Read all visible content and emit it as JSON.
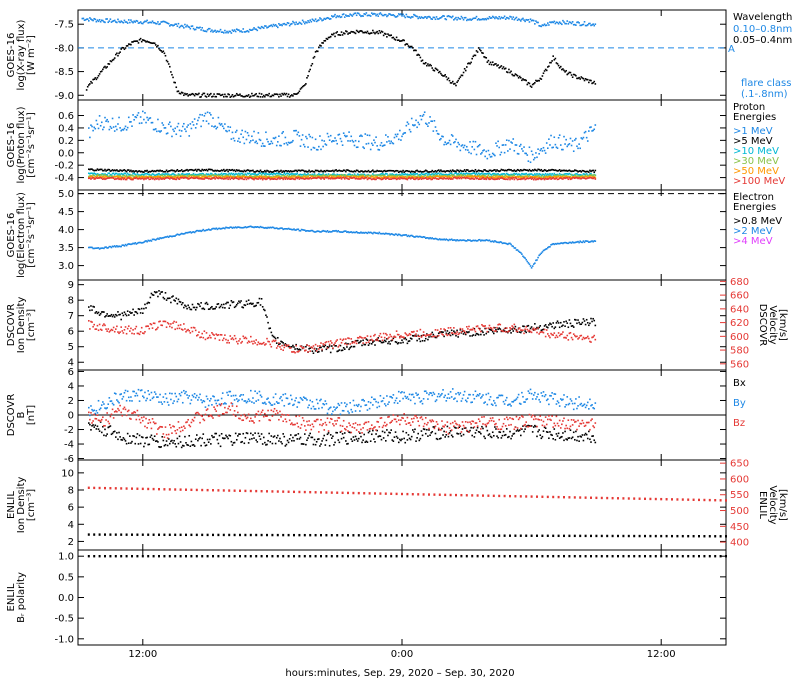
{
  "x_axis": {
    "label": "hours:minutes, Sep. 29, 2020 – Sep. 30, 2020",
    "ticks": [
      {
        "t": 12,
        "label": "12:00"
      },
      {
        "t": 24,
        "label": "0:00"
      },
      {
        "t": 36,
        "label": "12:00"
      }
    ],
    "range_hours": [
      9.0,
      39.0
    ]
  },
  "chart_data": [
    {
      "type": "scatter",
      "id": "xray",
      "ylabel": [
        "GOES-16",
        "log(X-ray flux)",
        "[W m⁻²]"
      ],
      "ylim": [
        -9.1,
        -7.2
      ],
      "yticks": [
        -7.5,
        -8.0,
        -8.5,
        -9.0
      ],
      "ytick_labels": [
        "-7.5",
        "-8.0",
        "-8.5",
        "-9.0"
      ],
      "legend_title": "Wavelength",
      "legend_title_2": "flare class",
      "legend_title_3": "(.1-.8nm)",
      "class_marker": "A",
      "class_level": -8.0,
      "series": [
        {
          "name": "0.10–0.8nm",
          "color": "#1e88e5",
          "x": [
            9.2,
            10,
            11,
            12,
            13,
            14,
            15,
            16,
            17,
            18,
            19,
            20,
            21,
            22,
            23,
            24,
            25,
            26,
            27,
            28,
            29,
            30,
            30.5,
            31.0,
            32.0,
            33.0
          ],
          "y": [
            -7.38,
            -7.42,
            -7.44,
            -7.45,
            -7.48,
            -7.55,
            -7.62,
            -7.65,
            -7.62,
            -7.55,
            -7.48,
            -7.42,
            -7.32,
            -7.3,
            -7.3,
            -7.32,
            -7.35,
            -7.36,
            -7.38,
            -7.37,
            -7.36,
            -7.42,
            -7.55,
            -7.45,
            -7.48,
            -7.5
          ]
        },
        {
          "name": "0.05–0.4nm",
          "color": "#000000",
          "x": [
            9.4,
            10,
            10.5,
            11,
            11.5,
            12,
            12.5,
            13,
            13.3,
            13.6,
            14,
            15,
            16,
            17,
            18,
            19,
            19.5,
            20,
            20.5,
            21,
            22,
            23,
            24,
            24.5,
            25,
            26,
            26.5,
            27,
            27.3,
            27.6,
            28,
            29,
            30,
            30.5,
            31,
            31.5,
            32,
            33
          ],
          "y": [
            -8.85,
            -8.55,
            -8.3,
            -8.05,
            -7.9,
            -7.83,
            -7.88,
            -8.1,
            -8.5,
            -8.9,
            -9.0,
            -9.0,
            -9.0,
            -9.0,
            -9.0,
            -9.0,
            -8.8,
            -8.1,
            -7.8,
            -7.7,
            -7.65,
            -7.68,
            -7.85,
            -8.0,
            -8.3,
            -8.6,
            -8.8,
            -8.4,
            -8.2,
            -8.0,
            -8.3,
            -8.5,
            -8.8,
            -8.6,
            -8.2,
            -8.5,
            -8.6,
            -8.75
          ]
        }
      ]
    },
    {
      "type": "scatter",
      "id": "proton",
      "ylabel": [
        "GOES-16",
        "log(Proton flux)",
        "[cm⁻²s⁻¹sr⁻¹]"
      ],
      "ylim": [
        -0.6,
        0.85
      ],
      "yticks": [
        0.6,
        0.4,
        0.2,
        0.0,
        -0.2,
        -0.4
      ],
      "ytick_labels": [
        "0.6",
        "0.4",
        "0.2",
        "0.0",
        "-0.2",
        "-0.4"
      ],
      "legend_title": "Proton",
      "legend_title_2": "Energies",
      "series": [
        {
          "name": ">1 MeV",
          "color": "#1e88e5",
          "x": [
            9.5,
            10,
            11,
            12,
            13,
            14,
            15,
            16,
            17,
            18,
            19,
            20,
            21,
            22,
            23,
            24,
            25,
            26,
            27,
            28,
            29,
            30,
            31,
            32,
            33
          ],
          "y": [
            0.3,
            0.5,
            0.45,
            0.55,
            0.4,
            0.35,
            0.6,
            0.3,
            0.25,
            0.2,
            0.25,
            0.15,
            0.25,
            0.2,
            0.15,
            0.3,
            0.6,
            0.2,
            0.1,
            0.0,
            0.15,
            -0.05,
            0.2,
            0.1,
            0.4
          ]
        },
        {
          "name": ">5 MeV",
          "color": "#000000",
          "x": [
            9.5,
            12,
            15,
            18,
            21,
            24,
            27,
            30,
            33
          ],
          "y": [
            -0.27,
            -0.3,
            -0.28,
            -0.3,
            -0.29,
            -0.3,
            -0.29,
            -0.28,
            -0.3
          ]
        },
        {
          "name": ">10 MeV",
          "color": "#00b8d4",
          "x": [
            9.5,
            12,
            15,
            18,
            21,
            24,
            27,
            30,
            33
          ],
          "y": [
            -0.34,
            -0.35,
            -0.35,
            -0.34,
            -0.36,
            -0.35,
            -0.34,
            -0.35,
            -0.35
          ]
        },
        {
          "name": ">30 MeV",
          "color": "#8bc34a",
          "x": [
            9.5,
            12,
            15,
            18,
            21,
            24,
            27,
            30,
            33
          ],
          "y": [
            -0.37,
            -0.38,
            -0.37,
            -0.38,
            -0.37,
            -0.38,
            -0.37,
            -0.38,
            -0.37
          ]
        },
        {
          "name": ">50 MeV",
          "color": "#ff9800",
          "x": [
            9.5,
            12,
            15,
            18,
            21,
            24,
            27,
            30,
            33
          ],
          "y": [
            -0.39,
            -0.4,
            -0.39,
            -0.4,
            -0.39,
            -0.4,
            -0.39,
            -0.4,
            -0.39
          ]
        },
        {
          "name": ">100 MeV",
          "color": "#e53935",
          "x": [
            9.5,
            12,
            15,
            18,
            21,
            24,
            27,
            30,
            33
          ],
          "y": [
            -0.41,
            -0.42,
            -0.41,
            -0.42,
            -0.41,
            -0.42,
            -0.41,
            -0.42,
            -0.41
          ]
        }
      ]
    },
    {
      "type": "line",
      "id": "electron",
      "ylabel": [
        "GOES-16",
        "log(Electron flux)",
        "[cm⁻²s⁻¹sr⁻¹]"
      ],
      "ylim": [
        2.6,
        5.1
      ],
      "yticks": [
        5.0,
        4.5,
        4.0,
        3.5,
        3.0
      ],
      "ytick_labels": [
        "5.0",
        "4.5",
        "4.0",
        "3.5",
        "3.0"
      ],
      "dashed_level": 5.0,
      "legend_title": "Electron",
      "legend_title_2": "Energies",
      "series": [
        {
          "name": ">0.8 MeV",
          "color": "#000000",
          "x": [],
          "y": []
        },
        {
          "name": ">2 MeV",
          "color": "#1e88e5",
          "x": [
            9.5,
            10,
            11,
            12,
            13,
            14,
            15,
            16,
            17,
            18,
            19,
            20,
            21,
            22,
            23,
            24,
            25,
            26,
            27,
            28,
            29,
            29.5,
            30,
            30.5,
            31,
            32,
            33
          ],
          "y": [
            3.5,
            3.48,
            3.55,
            3.65,
            3.78,
            3.9,
            4.0,
            4.05,
            4.08,
            4.05,
            4.0,
            3.95,
            3.95,
            3.92,
            3.9,
            3.85,
            3.78,
            3.72,
            3.7,
            3.7,
            3.6,
            3.35,
            2.95,
            3.4,
            3.6,
            3.65,
            3.68
          ]
        },
        {
          "name": ">4 MeV",
          "color": "#e040fb",
          "x": [],
          "y": []
        }
      ]
    },
    {
      "type": "scatter",
      "id": "dscovr_density",
      "ylabel": [
        "DSCOVR",
        "Ion Density",
        "[cm⁻³]"
      ],
      "ylim": [
        3.5,
        9.3
      ],
      "yticks": [
        9,
        8,
        7,
        6,
        5,
        4
      ],
      "ytick_labels": [
        "9",
        "8",
        "7",
        "6",
        "5",
        "4"
      ],
      "right_ylabel": [
        "DSCOVR",
        "Velocity",
        "[km/s]"
      ],
      "right_ylim": [
        551,
        682
      ],
      "right_yticks": [
        680,
        660,
        640,
        620,
        600,
        580,
        560
      ],
      "right_ytick_labels": [
        "680",
        "660",
        "640",
        "620",
        "600",
        "580",
        "560"
      ],
      "series": [
        {
          "name": "Ion Density",
          "color": "#000000",
          "axis": "left",
          "x": [
            9.5,
            10,
            11,
            12,
            12.5,
            13,
            14,
            15,
            16,
            17,
            17.5,
            18,
            19,
            20,
            21,
            22,
            23,
            24,
            25,
            26,
            27,
            28,
            29,
            30,
            31,
            32,
            33
          ],
          "y": [
            7.6,
            7.2,
            7.0,
            7.3,
            8.5,
            8.3,
            7.6,
            7.6,
            7.7,
            7.8,
            7.9,
            5.5,
            5.0,
            4.8,
            4.9,
            5.2,
            5.4,
            5.4,
            5.6,
            5.8,
            5.9,
            6.0,
            6.1,
            6.2,
            6.4,
            6.5,
            6.6
          ]
        },
        {
          "name": "Velocity",
          "color": "#e53935",
          "axis": "right",
          "x": [
            9.5,
            10,
            11,
            12,
            13,
            14,
            15,
            16,
            17,
            18,
            19,
            20,
            21,
            22,
            23,
            24,
            25,
            26,
            27,
            28,
            29,
            30,
            31,
            32,
            33
          ],
          "y": [
            617,
            614,
            610,
            608,
            620,
            612,
            600,
            596,
            594,
            590,
            580,
            584,
            590,
            595,
            598,
            603,
            604,
            606,
            610,
            612,
            612,
            609,
            602,
            600,
            596
          ]
        }
      ]
    },
    {
      "type": "scatter",
      "id": "dscovr_b",
      "ylabel": [
        "DSCOVR",
        "B",
        "[nT]"
      ],
      "ylim": [
        -6.2,
        6.2
      ],
      "yticks": [
        6,
        4,
        2,
        0,
        -2,
        -4,
        -6
      ],
      "ytick_labels": [
        "6",
        "4",
        "2",
        "0",
        "-2",
        "-4",
        "-6"
      ],
      "zero_line": true,
      "series": [
        {
          "name": "Bx",
          "color": "#000000",
          "x": [
            9.5,
            10,
            11,
            12,
            13,
            14,
            15,
            16,
            17,
            18,
            19,
            20,
            21,
            22,
            23,
            24,
            25,
            26,
            27,
            28,
            29,
            30,
            31,
            32,
            33
          ],
          "y": [
            -1.5,
            -1.8,
            -3.0,
            -3.5,
            -3.8,
            -3.6,
            -3.4,
            -3.5,
            -3.2,
            -3.3,
            -3.5,
            -3.4,
            -3.3,
            -3.0,
            -2.8,
            -3.0,
            -2.6,
            -2.4,
            -2.2,
            -2.5,
            -2.5,
            -2.2,
            -2.6,
            -2.8,
            -2.9
          ]
        },
        {
          "name": "By",
          "color": "#1e88e5",
          "x": [
            9.5,
            10,
            11,
            12,
            13,
            14,
            15,
            16,
            17,
            18,
            19,
            20,
            21,
            22,
            23,
            24,
            25,
            26,
            27,
            28,
            29,
            30,
            31,
            32,
            33
          ],
          "y": [
            0.5,
            1.2,
            2.5,
            2.8,
            2.0,
            2.5,
            1.8,
            2.4,
            2.6,
            2.2,
            1.9,
            1.5,
            0.8,
            1.2,
            2.0,
            2.5,
            2.4,
            2.8,
            2.6,
            2.2,
            2.0,
            2.8,
            2.2,
            1.6,
            1.8
          ]
        },
        {
          "name": "Bz",
          "color": "#e53935",
          "x": [
            9.5,
            10,
            11,
            12,
            13,
            14,
            15,
            16,
            17,
            18,
            19,
            20,
            21,
            22,
            23,
            24,
            25,
            26,
            27,
            28,
            29,
            30,
            31,
            32,
            33
          ],
          "y": [
            0.0,
            -1.0,
            0.5,
            -0.5,
            -2.5,
            -1.0,
            0.0,
            1.0,
            -0.5,
            0.2,
            -0.8,
            -1.5,
            -1.2,
            -2.0,
            -1.0,
            -0.5,
            -1.2,
            -1.8,
            -1.5,
            -1.0,
            -1.2,
            -0.8,
            -1.0,
            -1.5,
            -1.2
          ]
        }
      ]
    },
    {
      "type": "line",
      "id": "enlil_density",
      "ylabel": [
        "ENLIL",
        "Ion Density",
        "[cm⁻³]"
      ],
      "ylim": [
        1,
        11.5
      ],
      "yticks": [
        10,
        8,
        6,
        4,
        2
      ],
      "ytick_labels": [
        "10",
        "8",
        "6",
        "4",
        "2"
      ],
      "right_ylabel": [
        "ENLIL",
        "Velocity",
        "[km/s]"
      ],
      "right_ylim": [
        375,
        660
      ],
      "right_yticks": [
        650,
        600,
        550,
        500,
        450,
        400
      ],
      "right_ytick_labels": [
        "650",
        "600",
        "550",
        "500",
        "450",
        "400"
      ],
      "series": [
        {
          "name": "Ion Density",
          "color": "#000000",
          "axis": "left",
          "x": [
            9.5,
            39.0
          ],
          "y": [
            2.8,
            2.6
          ]
        },
        {
          "name": "Velocity",
          "color": "#e53935",
          "axis": "right",
          "x": [
            9.5,
            39.0
          ],
          "y": [
            572,
            532
          ]
        }
      ]
    },
    {
      "type": "line",
      "id": "enlil_polarity",
      "ylabel": [
        "ENLIL",
        "Bᵣ polarity"
      ],
      "ylim": [
        -1.15,
        1.15
      ],
      "yticks": [
        1.0,
        0.5,
        0.0,
        -0.5,
        -1.0
      ],
      "ytick_labels": [
        "1.0",
        "0.5",
        "0.0",
        "-0.5",
        "-1.0"
      ],
      "series": [
        {
          "name": "Br polarity",
          "color": "#000000",
          "axis": "left",
          "x": [
            9.5,
            39.0
          ],
          "y": [
            1.0,
            1.0
          ]
        }
      ]
    }
  ],
  "right_labels": {
    "dscovr_b": [
      "Bx",
      "By",
      "Bz"
    ]
  }
}
